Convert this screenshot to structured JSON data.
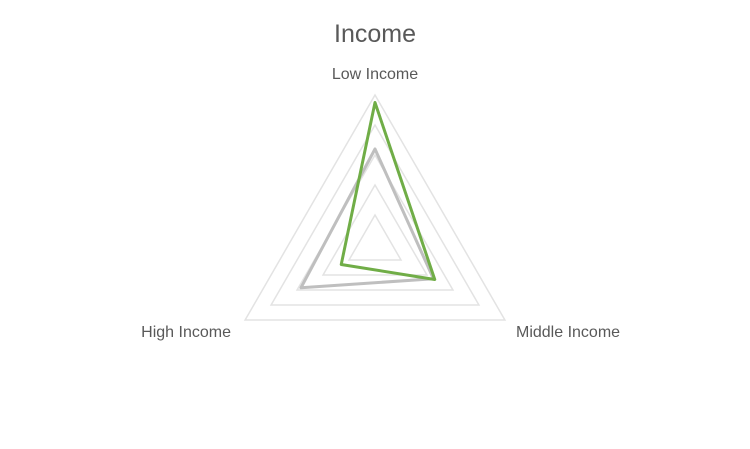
{
  "chart_data": {
    "type": "radar",
    "title": "Income",
    "axes": [
      "Low Income",
      "Middle Income",
      "High Income"
    ],
    "rmax": 1.0,
    "grid_levels": [
      0.2,
      0.4,
      0.6,
      0.8,
      1.0
    ],
    "grid": true,
    "legend": "none",
    "series": [
      {
        "values": [
          0.64,
          0.45,
          0.57
        ],
        "color": "#bfbfbf"
      },
      {
        "values": [
          0.95,
          0.46,
          0.26
        ],
        "color": "#70ad47"
      }
    ]
  }
}
